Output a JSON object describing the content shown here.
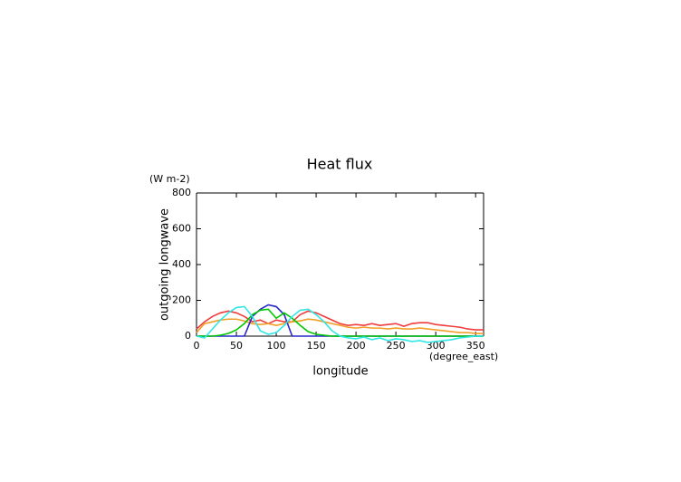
{
  "chart_data": {
    "type": "line",
    "title": "Heat flux",
    "y_unit": "(W m-2)",
    "y_label": "outgoing longwave",
    "x_label": "longitude",
    "x_unit": "(degree_east)",
    "x": [
      0,
      10,
      20,
      30,
      40,
      50,
      60,
      70,
      80,
      90,
      100,
      110,
      120,
      130,
      140,
      150,
      160,
      170,
      180,
      190,
      200,
      210,
      220,
      230,
      240,
      250,
      260,
      270,
      280,
      290,
      300,
      310,
      320,
      330,
      340,
      350,
      360
    ],
    "series": [
      {
        "color": "#f03c3c",
        "values": [
          40,
          80,
          110,
          130,
          140,
          130,
          110,
          80,
          90,
          70,
          90,
          80,
          80,
          120,
          140,
          130,
          110,
          90,
          70,
          60,
          65,
          60,
          70,
          60,
          65,
          70,
          55,
          70,
          75,
          75,
          65,
          60,
          55,
          50,
          40,
          35,
          35
        ]
      },
      {
        "color": "#f0a028",
        "values": [
          20,
          70,
          80,
          90,
          95,
          95,
          85,
          70,
          65,
          70,
          60,
          70,
          80,
          85,
          95,
          90,
          80,
          70,
          60,
          50,
          45,
          50,
          45,
          45,
          40,
          45,
          40,
          40,
          45,
          40,
          35,
          30,
          25,
          20,
          20,
          15,
          15
        ]
      },
      {
        "color": "#2828c8",
        "values": [
          0,
          0,
          0,
          0,
          0,
          0,
          0,
          110,
          150,
          175,
          165,
          120,
          0,
          0,
          0,
          0,
          0,
          0,
          0,
          0,
          0,
          0,
          0,
          0,
          0,
          0,
          0,
          0,
          0,
          0,
          0,
          0,
          0,
          0,
          0,
          0,
          0
        ]
      },
      {
        "color": "#00c800",
        "values": [
          0,
          0,
          0,
          5,
          15,
          35,
          70,
          120,
          145,
          150,
          100,
          130,
          100,
          60,
          25,
          10,
          5,
          0,
          0,
          0,
          0,
          0,
          0,
          0,
          0,
          0,
          0,
          0,
          0,
          0,
          0,
          0,
          0,
          0,
          0,
          0,
          0
        ]
      },
      {
        "color": "#30e6e6",
        "values": [
          0,
          -10,
          40,
          90,
          130,
          160,
          165,
          110,
          30,
          10,
          20,
          60,
          110,
          145,
          150,
          120,
          80,
          30,
          0,
          -10,
          -15,
          -5,
          -20,
          -10,
          -25,
          -15,
          -20,
          -30,
          -25,
          -35,
          -30,
          -25,
          -20,
          -10,
          -5,
          0,
          0
        ]
      }
    ],
    "xlim": [
      0,
      360
    ],
    "xticks": [
      0,
      50,
      100,
      150,
      200,
      250,
      300,
      350
    ],
    "ylim": [
      0,
      800
    ],
    "yticks": [
      0,
      200,
      400,
      600,
      800
    ]
  }
}
